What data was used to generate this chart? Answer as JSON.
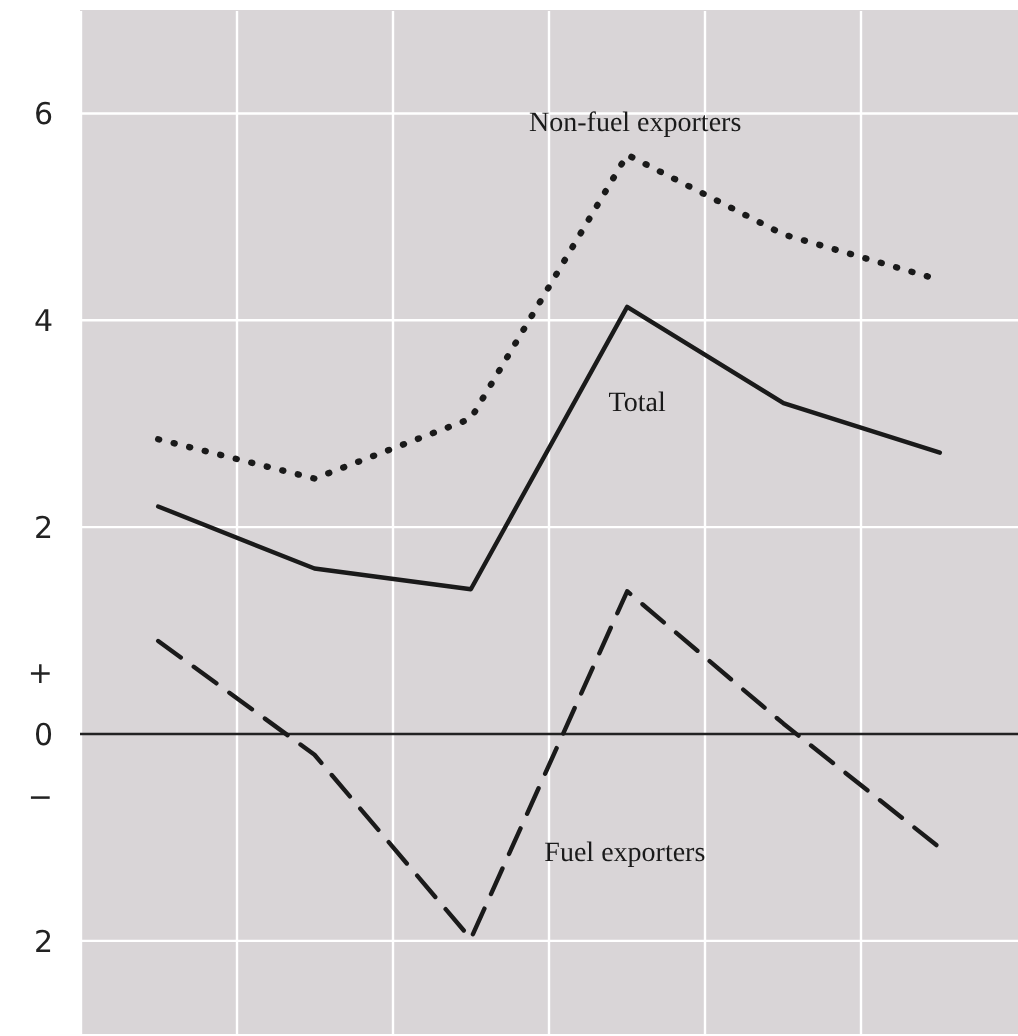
{
  "chart_data": {
    "type": "line",
    "categories": [
      null,
      null,
      null,
      null,
      null,
      null
    ],
    "series": [
      {
        "name": "Non-fuel exporters",
        "color": "#1a1a1a",
        "line_style": "dotted",
        "values": [
          2.85,
          2.47,
          3.05,
          5.6,
          4.83,
          4.39
        ]
      },
      {
        "name": "Total",
        "color": "#1a1a1a",
        "line_style": "solid",
        "values": [
          2.2,
          1.6,
          1.4,
          4.13,
          3.2,
          2.72
        ]
      },
      {
        "name": "Fuel exporters",
        "color": "#1a1a1a",
        "line_style": "dashed",
        "values": [
          0.9,
          -0.2,
          -1.98,
          1.38,
          0.1,
          -1.1
        ]
      }
    ],
    "ylim": [
      -2.9,
      7.0
    ],
    "yticks": [
      6,
      4,
      2,
      {
        "value": 0.6,
        "label": "+"
      },
      0,
      {
        "value": -0.6,
        "label": "−"
      },
      {
        "value": -2,
        "label": "2"
      }
    ],
    "ref_lines": [
      {
        "axis": "y",
        "value": 0,
        "color": "#222222"
      }
    ],
    "grid": true,
    "tick_labels": "y",
    "marker": "none"
  }
}
